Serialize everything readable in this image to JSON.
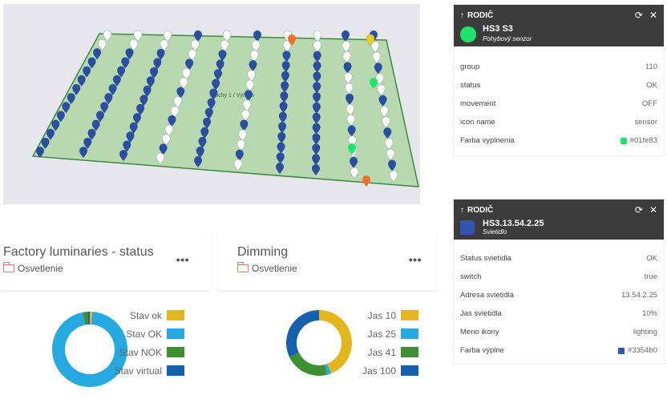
{
  "map": {
    "zone_label": "Plochy 1 / Výroba",
    "colors": {
      "floor": "#b8d8b0",
      "border": "#3c8a42",
      "pin_blue": "#2b4fa0",
      "pin_white": "#ffffff",
      "pin_orange": "#f06f2a",
      "pin_yellow": "#f0d000",
      "pin_green": "#1fe36b"
    }
  },
  "status_widget": {
    "title": "Factory luminaries - status",
    "folder": "Osvetlenie",
    "menu": "•••",
    "legend": [
      {
        "label": "Stav ok",
        "color": "#e5b51d",
        "value": 1
      },
      {
        "label": "Stav OK",
        "color": "#26a8e0",
        "value": 96
      },
      {
        "label": "Stav NOK",
        "color": "#3f8f32",
        "value": 2
      },
      {
        "label": "Stav virtual",
        "color": "#1660ad",
        "value": 1
      }
    ]
  },
  "dimming_widget": {
    "title": "Dimming",
    "folder": "Osvetlenie",
    "menu": "•••",
    "legend": [
      {
        "label": "Jas 10",
        "color": "#e5b51d",
        "value": 44
      },
      {
        "label": "Jas 25",
        "color": "#26a8e0",
        "value": 2
      },
      {
        "label": "Jas 41",
        "color": "#3f8f32",
        "value": 22
      },
      {
        "label": "Jas 100",
        "color": "#1660ad",
        "value": 32
      }
    ]
  },
  "panel_sensor": {
    "parent_label": "RODIČ",
    "name": "HS3 S3",
    "subtitle": "Pohybový senzor",
    "rows": [
      {
        "key": "group",
        "value": "110"
      },
      {
        "key": "status",
        "value": "OK"
      },
      {
        "key": "movement",
        "value": "OFF"
      },
      {
        "key": "icon name",
        "value": "sensor"
      },
      {
        "key": "Farba vyplnenia",
        "value": "#01fe83",
        "swatch": "#1fe36b"
      }
    ]
  },
  "panel_luminaire": {
    "parent_label": "RODIČ",
    "name": "HS3.13.54.2.25",
    "subtitle": "Svietidlo",
    "rows": [
      {
        "key": "Status svietidla",
        "value": "OK"
      },
      {
        "key": "switch",
        "value": "true"
      },
      {
        "key": "Adresa svietidla",
        "value": "13.54.2.25"
      },
      {
        "key": "Jas svietidla",
        "value": "10%"
      },
      {
        "key": "Meno ikony",
        "value": "lighting"
      },
      {
        "key": "Farba výplne",
        "value": "#3354b0",
        "swatch": "#3354b0"
      }
    ]
  }
}
